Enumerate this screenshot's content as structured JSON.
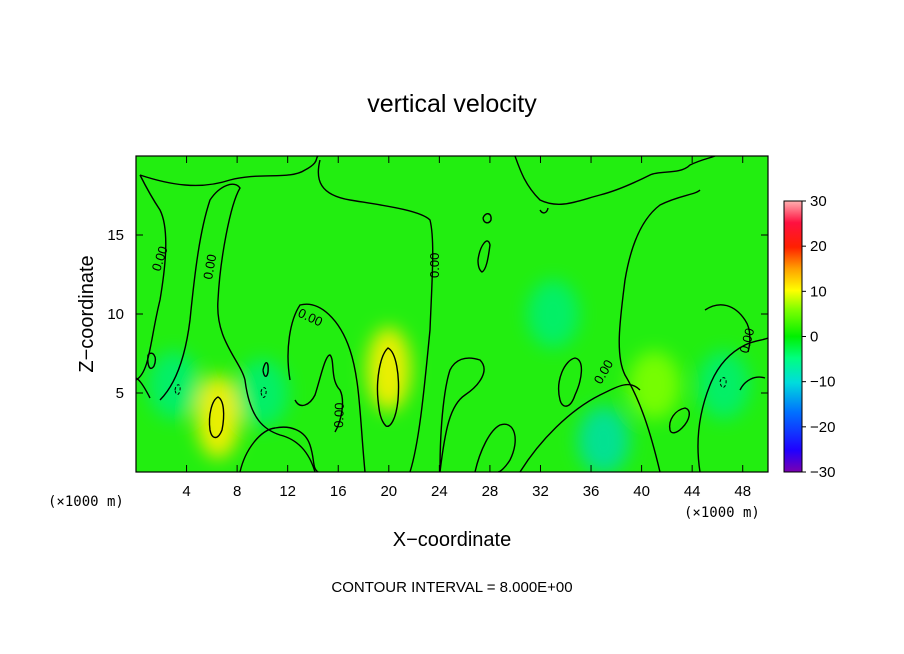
{
  "chart_data": {
    "type": "heatmap",
    "title": "vertical velocity",
    "xlabel": "X−coordinate",
    "ylabel": "Z−coordinate",
    "x_unit": "(×1000 m)",
    "y_unit": "(×1000 m)",
    "xlim": [
      0,
      50
    ],
    "ylim": [
      0,
      20
    ],
    "x_ticks": [
      4,
      8,
      12,
      16,
      20,
      24,
      28,
      32,
      36,
      40,
      44,
      48
    ],
    "y_ticks": [
      5,
      10,
      15
    ],
    "colorbar": {
      "min": -30,
      "max": 30,
      "ticks": [
        30,
        20,
        10,
        0,
        -10,
        -20,
        -30
      ],
      "tick_labels": [
        "30",
        "20",
        "10",
        "0",
        "−10",
        "−20",
        "−30"
      ]
    },
    "contour_label": "0.00",
    "footer": "CONTOUR INTERVAL = 8.000E+00",
    "features": [
      {
        "x": 20,
        "z": 6.5,
        "value": 10
      },
      {
        "x": 6.5,
        "z": 3.5,
        "value": 9
      },
      {
        "x": 3,
        "z": 5.5,
        "value": -3
      },
      {
        "x": 10,
        "z": 5,
        "value": -3
      },
      {
        "x": 37,
        "z": 2,
        "value": -4
      },
      {
        "x": 46.5,
        "z": 5.5,
        "value": -3
      },
      {
        "x": 33,
        "z": 10,
        "value": -2
      },
      {
        "x": 41,
        "z": 5.5,
        "value": 3
      }
    ]
  }
}
